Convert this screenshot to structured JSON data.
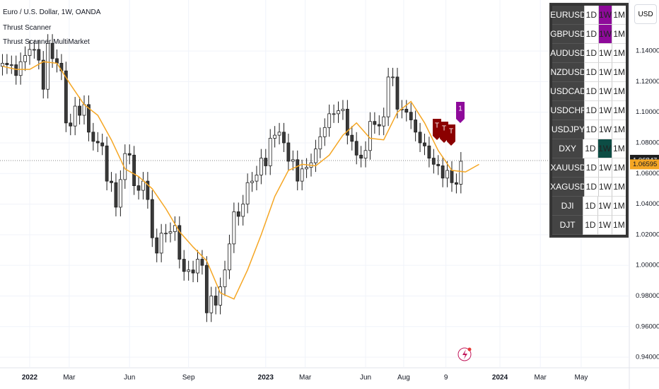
{
  "chart_data": {
    "type": "candlestick",
    "title": "Euro / U.S. Dollar, 1W, OANDA",
    "indicators": [
      "Thrust Scanner",
      "Thrust Scanner MultiMarket"
    ],
    "currency": "USD",
    "up_color": "#ffffff",
    "down_color": "#3a3a3a",
    "border_color": "#1e1e1e",
    "open": [
      1.13,
      1.132,
      1.131,
      1.131,
      1.124,
      1.133,
      1.137,
      1.141,
      1.141,
      1.134,
      1.115,
      1.145,
      1.135,
      1.132,
      1.127,
      1.093,
      1.091,
      1.104,
      1.098,
      1.105,
      1.087,
      1.081,
      1.08,
      1.078,
      1.055,
      1.054,
      1.038,
      1.056,
      1.073,
      1.072,
      1.052,
      1.049,
      1.055,
      1.043,
      1.018,
      1.008,
      1.021,
      1.021,
      1.022,
      1.026,
      1.004,
      0.996,
      0.997,
      0.995,
      1.004,
      1.0,
      0.969,
      0.98,
      0.974,
      0.986,
      0.997,
      1.014,
      1.035,
      1.032,
      1.04,
      1.054,
      1.055,
      1.059,
      1.07,
      1.065,
      1.083,
      1.085,
      1.087,
      1.08,
      1.068,
      1.069,
      1.055,
      1.063,
      1.064,
      1.067,
      1.076,
      1.084,
      1.09,
      1.099,
      1.099,
      1.101,
      1.102,
      1.085,
      1.081,
      1.072,
      1.07,
      1.075,
      1.094,
      1.092,
      1.091,
      1.097,
      1.123,
      1.123,
      1.102,
      1.102,
      1.1,
      1.095,
      1.087,
      1.08,
      1.078,
      1.07,
      1.066,
      1.065,
      1.057,
      1.062,
      1.054,
      1.053
    ],
    "high": [
      1.138,
      1.138,
      1.137,
      1.137,
      1.139,
      1.143,
      1.147,
      1.147,
      1.147,
      1.14,
      1.151,
      1.151,
      1.141,
      1.138,
      1.133,
      1.099,
      1.11,
      1.11,
      1.111,
      1.111,
      1.093,
      1.087,
      1.086,
      1.084,
      1.061,
      1.06,
      1.062,
      1.079,
      1.079,
      1.078,
      1.058,
      1.061,
      1.061,
      1.049,
      1.024,
      1.027,
      1.027,
      1.028,
      1.032,
      1.032,
      1.01,
      1.003,
      1.003,
      1.01,
      1.01,
      1.006,
      0.986,
      0.986,
      0.992,
      1.003,
      1.02,
      1.041,
      1.041,
      1.046,
      1.06,
      1.061,
      1.065,
      1.076,
      1.076,
      1.089,
      1.091,
      1.093,
      1.093,
      1.086,
      1.075,
      1.075,
      1.069,
      1.07,
      1.073,
      1.082,
      1.09,
      1.096,
      1.105,
      1.105,
      1.107,
      1.108,
      1.108,
      1.091,
      1.087,
      1.078,
      1.081,
      1.1,
      1.1,
      1.098,
      1.103,
      1.129,
      1.129,
      1.129,
      1.108,
      1.108,
      1.106,
      1.101,
      1.093,
      1.086,
      1.084,
      1.076,
      1.072,
      1.071,
      1.068,
      1.068,
      1.06,
      1.074
    ],
    "low": [
      1.124,
      1.125,
      1.125,
      1.118,
      1.118,
      1.127,
      1.131,
      1.135,
      1.128,
      1.109,
      1.109,
      1.129,
      1.126,
      1.121,
      1.087,
      1.085,
      1.085,
      1.092,
      1.092,
      1.081,
      1.075,
      1.074,
      1.072,
      1.049,
      1.048,
      1.032,
      1.032,
      1.05,
      1.066,
      1.046,
      1.043,
      1.043,
      1.037,
      1.012,
      1.002,
      1.002,
      1.015,
      1.015,
      1.016,
      0.998,
      0.99,
      0.99,
      0.989,
      0.989,
      0.994,
      0.963,
      0.963,
      0.968,
      0.968,
      0.98,
      0.991,
      1.008,
      1.026,
      1.026,
      1.034,
      1.048,
      1.049,
      1.053,
      1.059,
      1.059,
      1.077,
      1.079,
      1.074,
      1.062,
      1.062,
      1.049,
      1.049,
      1.057,
      1.058,
      1.061,
      1.07,
      1.078,
      1.084,
      1.093,
      1.093,
      1.095,
      1.079,
      1.075,
      1.066,
      1.064,
      1.064,
      1.069,
      1.086,
      1.085,
      1.085,
      1.091,
      1.117,
      1.096,
      1.096,
      1.094,
      1.089,
      1.081,
      1.074,
      1.072,
      1.064,
      1.06,
      1.059,
      1.051,
      1.051,
      1.048,
      1.047,
      1.047
    ],
    "close": [
      1.132,
      1.131,
      1.131,
      1.124,
      1.133,
      1.137,
      1.141,
      1.141,
      1.134,
      1.115,
      1.145,
      1.135,
      1.132,
      1.127,
      1.093,
      1.091,
      1.104,
      1.098,
      1.105,
      1.087,
      1.081,
      1.08,
      1.078,
      1.055,
      1.054,
      1.038,
      1.056,
      1.073,
      1.072,
      1.052,
      1.049,
      1.055,
      1.043,
      1.018,
      1.008,
      1.021,
      1.021,
      1.022,
      1.026,
      1.004,
      0.996,
      0.997,
      0.995,
      1.004,
      1.0,
      0.969,
      0.98,
      0.974,
      0.986,
      0.997,
      1.014,
      1.035,
      1.032,
      1.04,
      1.054,
      1.055,
      1.059,
      1.07,
      1.065,
      1.083,
      1.085,
      1.087,
      1.08,
      1.068,
      1.069,
      1.055,
      1.063,
      1.064,
      1.067,
      1.076,
      1.084,
      1.09,
      1.099,
      1.099,
      1.101,
      1.102,
      1.085,
      1.081,
      1.072,
      1.07,
      1.075,
      1.094,
      1.092,
      1.091,
      1.097,
      1.123,
      1.123,
      1.102,
      1.102,
      1.1,
      1.095,
      1.087,
      1.08,
      1.078,
      1.07,
      1.066,
      1.065,
      1.057,
      1.062,
      1.054,
      1.053,
      1.068
    ],
    "ma": {
      "color": "#f5a623",
      "x": [
        0,
        3,
        6,
        9,
        12,
        15,
        18,
        21,
        24,
        27,
        30,
        33,
        36,
        39,
        42,
        45,
        48,
        51,
        54,
        57,
        60,
        63,
        66,
        69,
        72,
        75,
        78,
        81,
        84,
        87,
        90,
        93,
        96,
        99,
        102,
        105
      ],
      "values": [
        1.13,
        1.128,
        1.128,
        1.133,
        1.132,
        1.118,
        1.105,
        1.098,
        1.082,
        1.063,
        1.058,
        1.05,
        1.037,
        1.022,
        1.012,
        1.003,
        0.982,
        0.978,
        0.997,
        1.02,
        1.045,
        1.062,
        1.066,
        1.065,
        1.072,
        1.085,
        1.093,
        1.083,
        1.082,
        1.1,
        1.107,
        1.093,
        1.075,
        1.062,
        1.061,
        1.06595
      ]
    },
    "last_price": 1.06847,
    "ma_last": 1.06595,
    "signals": [
      {
        "text": "T",
        "color": "#8b0000"
      },
      {
        "text": "T",
        "color": "#8b0000"
      },
      {
        "text": "T",
        "color": "#8b0000"
      },
      {
        "text": "1",
        "color": "#8e0a9a"
      }
    ],
    "xlim": [
      -0.54,
      138.1
    ],
    "ylim": [
      0.9331,
      1.1733
    ],
    "yticks": [
      {
        "value": 1.14,
        "label": "1.14000"
      },
      {
        "value": 1.12,
        "label": "1.12000"
      },
      {
        "value": 1.1,
        "label": "1.10000"
      },
      {
        "value": 1.08,
        "label": "1.08000"
      },
      {
        "value": 1.06,
        "label": "1.06000"
      },
      {
        "value": 1.04,
        "label": "1.04000"
      },
      {
        "value": 1.02,
        "label": "1.02000"
      },
      {
        "value": 1.0,
        "label": "1.00000"
      },
      {
        "value": 0.98,
        "label": "0.98000"
      },
      {
        "value": 0.96,
        "label": "0.96000"
      },
      {
        "value": 0.94,
        "label": "0.94000"
      }
    ],
    "xticks": [
      {
        "value": 6,
        "label": "2022"
      },
      {
        "value": 14.7,
        "label": "Mar"
      },
      {
        "value": 28,
        "label": "Jun"
      },
      {
        "value": 41,
        "label": "Sep"
      },
      {
        "value": 58,
        "label": "2023"
      },
      {
        "value": 66.7,
        "label": "Mar"
      },
      {
        "value": 80,
        "label": "Jun"
      },
      {
        "value": 88.4,
        "label": "Aug"
      },
      {
        "value": 97.7,
        "label": "9"
      },
      {
        "value": 109.6,
        "label": "2024"
      },
      {
        "value": 118.5,
        "label": "Mar"
      },
      {
        "value": 127.5,
        "label": "May"
      }
    ],
    "grid": true,
    "scanner_table": {
      "columns_color": "#ffffff",
      "rows": [
        {
          "symbol": "EURUSD",
          "cells": [
            "1D",
            "1W",
            "1M"
          ],
          "highlight": {
            "col": 1,
            "color": "#8e0a9a"
          }
        },
        {
          "symbol": "GBPUSD",
          "cells": [
            "1D",
            "1W",
            "1M"
          ],
          "highlight": {
            "col": 1,
            "color": "#8e0a9a"
          }
        },
        {
          "symbol": "AUDUSD",
          "cells": [
            "1D",
            "1W",
            "1M"
          ]
        },
        {
          "symbol": "NZDUSD",
          "cells": [
            "1D",
            "1W",
            "1M"
          ]
        },
        {
          "symbol": "USDCAD",
          "cells": [
            "1D",
            "1W",
            "1M"
          ]
        },
        {
          "symbol": "USDCHF",
          "cells": [
            "1D",
            "1W",
            "1M"
          ]
        },
        {
          "symbol": "USDJPY",
          "cells": [
            "1D",
            "1W",
            "1M"
          ]
        },
        {
          "symbol": "DXY",
          "cells": [
            "1D",
            "1W",
            "1M"
          ],
          "highlight": {
            "col": 1,
            "color": "#0d4d45"
          }
        },
        {
          "symbol": "XAUUSD",
          "cells": [
            "1D",
            "1W",
            "1M"
          ]
        },
        {
          "symbol": "XAGUSD",
          "cells": [
            "1D",
            "1W",
            "1M"
          ]
        },
        {
          "symbol": "DJI",
          "cells": [
            "1D",
            "1W",
            "1M"
          ]
        },
        {
          "symbol": "DJT",
          "cells": [
            "1D",
            "1W",
            "1M"
          ]
        }
      ]
    }
  }
}
